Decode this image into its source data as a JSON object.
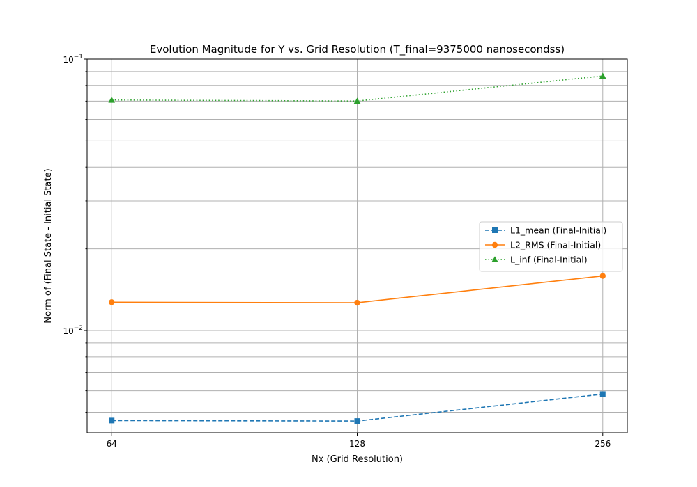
{
  "chart_data": {
    "type": "line",
    "title": "Evolution Magnitude for Y vs. Grid Resolution (T_final=9375000 nanosecondss)",
    "xlabel": "Nx (Grid Resolution)",
    "ylabel": "Norm of (Final State - Initial State)",
    "x_scale": "log2",
    "y_scale": "log",
    "x": [
      64,
      128,
      256
    ],
    "x_tick_labels": [
      "64",
      "128",
      "256"
    ],
    "ylim": [
      0.0042,
      0.1
    ],
    "y_ticks": [
      {
        "value": 0.01,
        "base": "10",
        "exp": "−2"
      },
      {
        "value": 0.1,
        "base": "10",
        "exp": "−1"
      }
    ],
    "grid": true,
    "legend_position": "center-right",
    "series": [
      {
        "name": "L1_mean (Final-Initial)",
        "values": [
          0.00466,
          0.00464,
          0.00583
        ],
        "color": "#1f77b4",
        "marker": "square",
        "linestyle": "dashed"
      },
      {
        "name": "L2_RMS (Final-Initial)",
        "values": [
          0.01272,
          0.01266,
          0.01589
        ],
        "color": "#ff7f0e",
        "marker": "circle",
        "linestyle": "solid"
      },
      {
        "name": "L_inf (Final-Initial)",
        "values": [
          0.0707,
          0.0701,
          0.0867
        ],
        "color": "#2ca02c",
        "marker": "triangle",
        "linestyle": "dotted"
      }
    ]
  }
}
